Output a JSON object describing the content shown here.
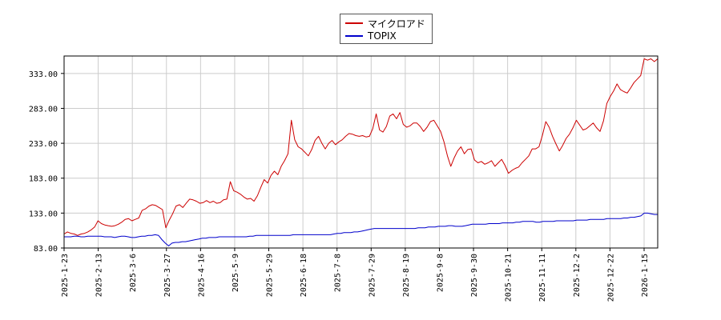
{
  "chart_data": {
    "type": "line",
    "title": "",
    "xlabel": "",
    "ylabel": "",
    "x_tick_labels": [
      "2025-1-23",
      "2025-2-13",
      "2025-3-6",
      "2025-3-27",
      "2025-4-16",
      "2025-5-9",
      "2025-5-29",
      "2025-6-18",
      "2025-7-8",
      "2025-7-29",
      "2025-8-19",
      "2025-9-8",
      "2025-9-30",
      "2025-10-21",
      "2025-11-11",
      "2025-12-2",
      "2025-12-22",
      "2026-1-15"
    ],
    "y_ticks": [
      83,
      133,
      183,
      233,
      283,
      333
    ],
    "y_tick_labels": [
      "83.00",
      "133.00",
      "183.00",
      "233.00",
      "283.00",
      "333.00"
    ],
    "ylim": [
      83,
      358
    ],
    "grid": true,
    "legend_position": "top-center",
    "series": [
      {
        "name": "マイクロアド",
        "color": "#cc0000",
        "values": [
          103,
          106,
          104,
          103,
          101,
          103,
          104,
          106,
          109,
          113,
          122,
          118,
          116,
          115,
          114,
          115,
          117,
          120,
          124,
          125,
          122,
          124,
          126,
          137,
          139,
          143,
          145,
          144,
          141,
          138,
          112,
          123,
          132,
          143,
          145,
          141,
          147,
          153,
          152,
          150,
          147,
          148,
          151,
          148,
          150,
          147,
          148,
          152,
          153,
          178,
          165,
          163,
          160,
          156,
          153,
          154,
          150,
          158,
          170,
          181,
          176,
          187,
          193,
          188,
          200,
          208,
          218,
          266,
          238,
          228,
          225,
          220,
          215,
          224,
          237,
          243,
          233,
          225,
          233,
          237,
          231,
          235,
          238,
          243,
          247,
          246,
          244,
          243,
          244,
          242,
          243,
          254,
          275,
          252,
          249,
          257,
          272,
          275,
          268,
          277,
          260,
          256,
          258,
          262,
          262,
          257,
          250,
          256,
          264,
          266,
          258,
          250,
          235,
          215,
          200,
          212,
          222,
          228,
          218,
          224,
          225,
          209,
          205,
          207,
          203,
          205,
          208,
          200,
          205,
          210,
          201,
          190,
          194,
          197,
          199,
          205,
          210,
          215,
          225,
          225,
          228,
          244,
          264,
          256,
          243,
          232,
          222,
          230,
          240,
          246,
          255,
          266,
          259,
          252,
          254,
          258,
          262,
          255,
          250,
          265,
          290,
          300,
          308,
          318,
          310,
          307,
          305,
          312,
          320,
          325,
          330,
          354,
          352,
          354,
          350,
          354
        ]
      },
      {
        "name": "TOPIX",
        "color": "#0000cc",
        "values": [
          99,
          99,
          99,
          100,
          100,
          99,
          99,
          100,
          100,
          100,
          100,
          100,
          99,
          99,
          99,
          98,
          99,
          100,
          100,
          99,
          98,
          98,
          99,
          100,
          100,
          101,
          101,
          102,
          101,
          95,
          90,
          86,
          90,
          91,
          91,
          92,
          92,
          93,
          94,
          95,
          96,
          97,
          97,
          98,
          98,
          98,
          99,
          99,
          99,
          99,
          99,
          99,
          99,
          99,
          99,
          100,
          100,
          101,
          101,
          101,
          101,
          101,
          101,
          101,
          101,
          101,
          101,
          101,
          102,
          102,
          102,
          102,
          102,
          102,
          102,
          102,
          102,
          102,
          102,
          102,
          103,
          104,
          104,
          105,
          105,
          105,
          106,
          106,
          107,
          108,
          109,
          110,
          111,
          111,
          111,
          111,
          111,
          111,
          111,
          111,
          111,
          111,
          111,
          111,
          111,
          112,
          112,
          112,
          113,
          113,
          113,
          114,
          114,
          114,
          115,
          115,
          114,
          114,
          114,
          115,
          116,
          117,
          117,
          117,
          117,
          117,
          118,
          118,
          118,
          118,
          119,
          119,
          119,
          119,
          120,
          120,
          121,
          121,
          121,
          121,
          120,
          120,
          121,
          121,
          121,
          121,
          122,
          122,
          122,
          122,
          122,
          122,
          123,
          123,
          123,
          123,
          124,
          124,
          124,
          124,
          124,
          125,
          125,
          125,
          125,
          125,
          126,
          126,
          127,
          127,
          128,
          129,
          133,
          133,
          132,
          131,
          131
        ]
      }
    ]
  }
}
